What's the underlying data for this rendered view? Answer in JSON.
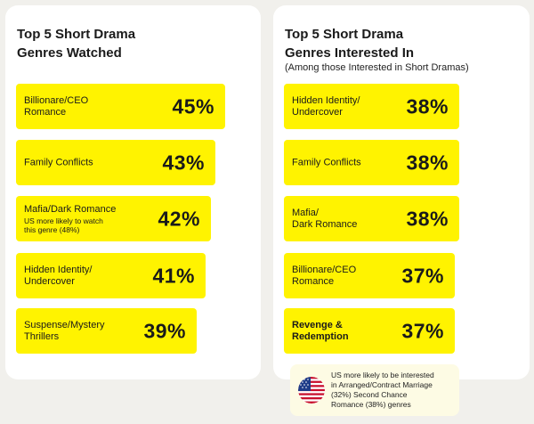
{
  "chart_data": [
    {
      "type": "bar",
      "title": "Top 5 Short Drama\nGenres Watched",
      "subtitle": "",
      "unit": "%",
      "xlim": [
        0,
        50
      ],
      "bars": [
        {
          "label": "Billionare/CEO\nRomance",
          "value": 45,
          "display": "45%",
          "note": ""
        },
        {
          "label": "Family Conflicts",
          "value": 43,
          "display": "43%",
          "note": ""
        },
        {
          "label": "Mafia/Dark Romance",
          "value": 42,
          "display": "42%",
          "note": "US more likely to watch\nthis genre (48%)"
        },
        {
          "label": "Hidden Identity/\nUndercover",
          "value": 41,
          "display": "41%",
          "note": ""
        },
        {
          "label": "Suspense/Mystery\nThrillers",
          "value": 39,
          "display": "39%",
          "note": ""
        }
      ]
    },
    {
      "type": "bar",
      "title": "Top 5 Short Drama\nGenres Interested In",
      "subtitle": "(Among those Interested in Short Dramas)",
      "unit": "%",
      "xlim": [
        0,
        50
      ],
      "bars": [
        {
          "label": "Hidden Identity/\nUndercover",
          "value": 38,
          "display": "38%",
          "note": ""
        },
        {
          "label": "Family Conflicts",
          "value": 38,
          "display": "38%",
          "note": ""
        },
        {
          "label": "Mafia/\nDark Romance",
          "value": 38,
          "display": "38%",
          "note": ""
        },
        {
          "label": "Billionare/CEO\nRomance",
          "value": 37,
          "display": "37%",
          "note": ""
        },
        {
          "label": "Revenge &\nRedemption",
          "value": 37,
          "display": "37%",
          "note": "",
          "bold": true
        }
      ]
    }
  ],
  "us_note": {
    "text": "US more likely to be interested\nin Arranged/Contract Marriage\n(32%) Second Chance\nRomance (38%) genres",
    "icon": "us-flag-icon"
  },
  "colors": {
    "bar": "#fff300",
    "card": "#ffffff",
    "background": "#f1f0ec",
    "note_bg": "#fdfbe4"
  }
}
